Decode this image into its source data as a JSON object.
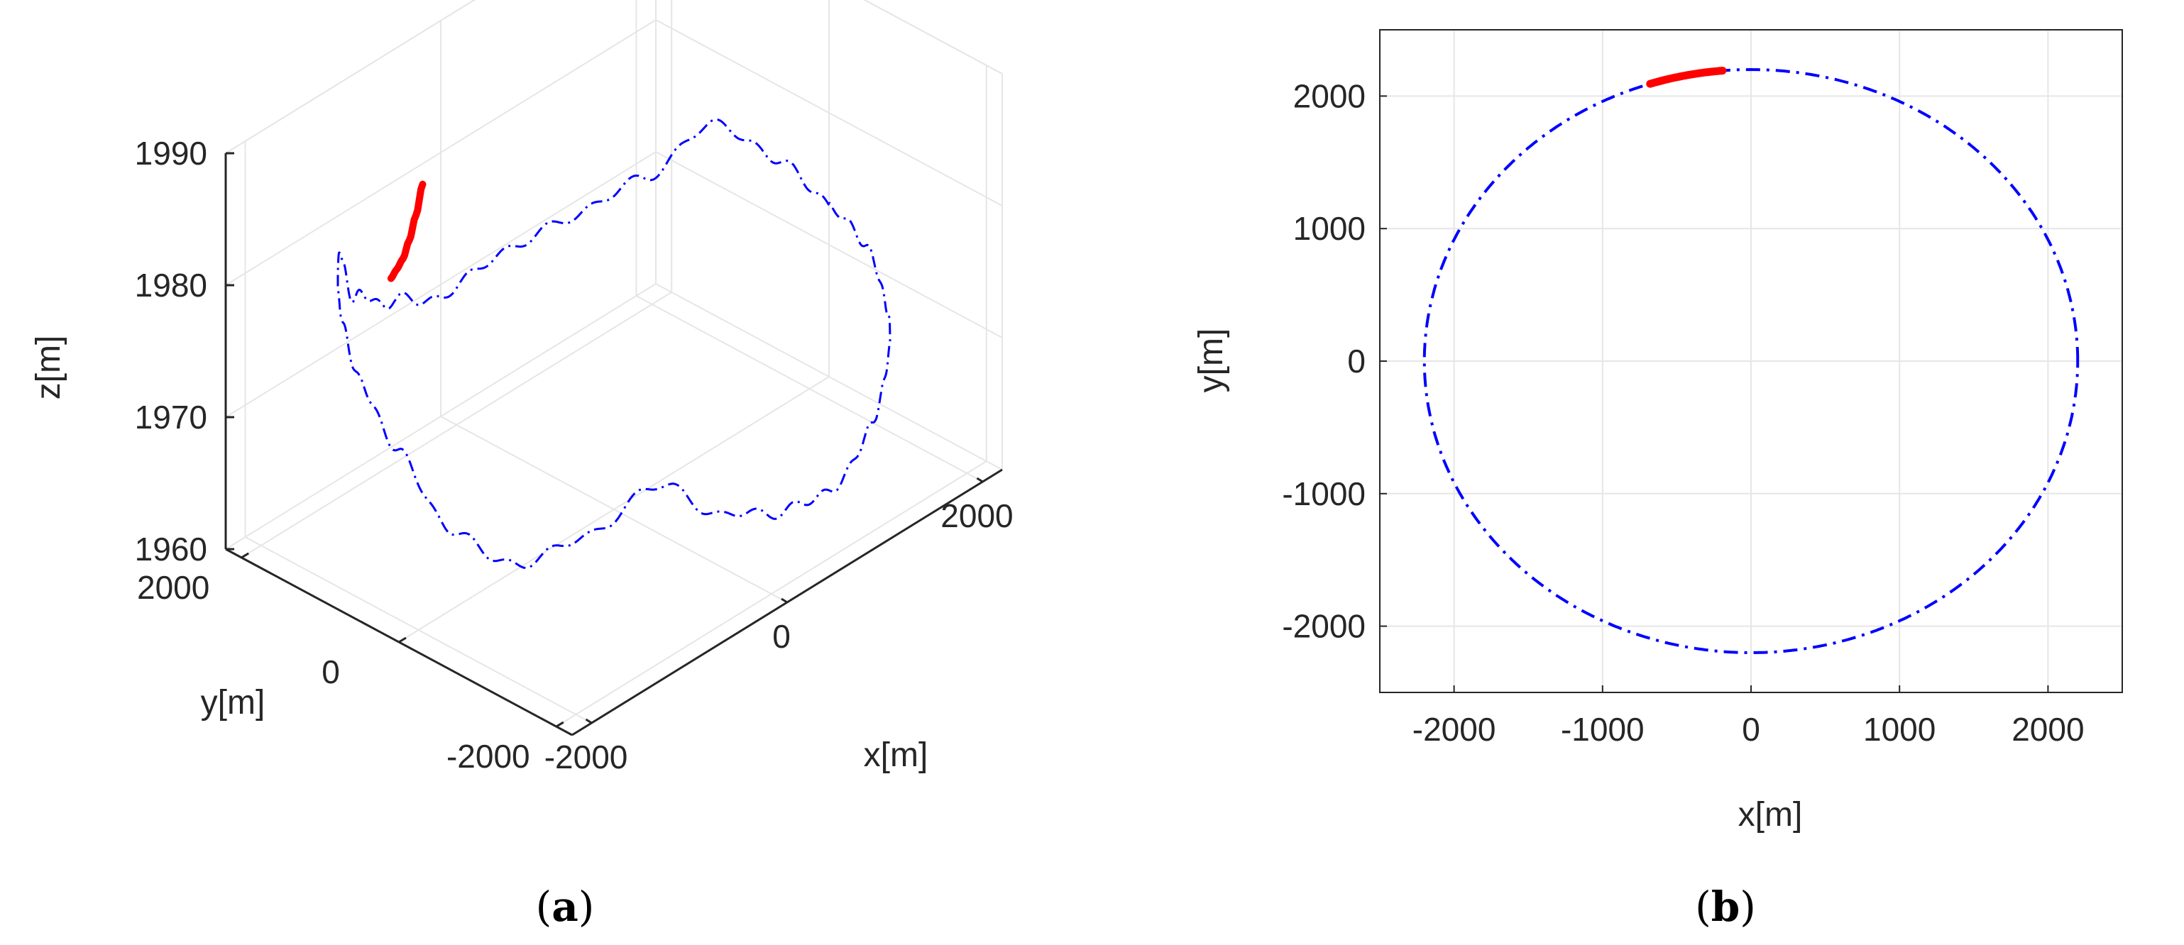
{
  "figure": {
    "caption_a": "(a)",
    "caption_a_letter": "a",
    "caption_b": "(b)",
    "caption_b_letter": "b"
  },
  "colors": {
    "trajectory": "#0000ff",
    "highlight": "#ff0000",
    "axis": "#262626",
    "grid": "#e6e6e6"
  },
  "chart_data": [
    {
      "id": "a",
      "type": "line",
      "projection": "3d",
      "xlabel": "x[m]",
      "ylabel": "y[m]",
      "zlabel": "z[m]",
      "xlim": [
        -2200,
        2200
      ],
      "ylim": [
        -2200,
        2200
      ],
      "zlim": [
        1960,
        1990
      ],
      "xticks": [
        -2000,
        0,
        2000
      ],
      "xtick_labels": [
        "-2000",
        "0",
        "2000"
      ],
      "yticks": [
        -2000,
        0,
        2000
      ],
      "ytick_labels": [
        "-2000",
        "0",
        "2000"
      ],
      "zticks": [
        1960,
        1970,
        1980,
        1990
      ],
      "ztick_labels": [
        "1960",
        "1970",
        "1980",
        "1990"
      ],
      "grid": true,
      "series": [
        {
          "name": "trajectory",
          "style": "dash-dot",
          "color": "#0000ff",
          "radius": 2200,
          "angle_deg": [
            0,
            15,
            30,
            45,
            60,
            75,
            90,
            105,
            120,
            135,
            150,
            165,
            180,
            195,
            210,
            225,
            240,
            255,
            270,
            285,
            300,
            315,
            330,
            345,
            360
          ],
          "z": [
            1973,
            1975,
            1977,
            1973,
            1971,
            1970,
            1969,
            1971.5,
            1975,
            1981.5,
            1980,
            1977.5,
            1974.5,
            1970,
            1968,
            1970,
            1973,
            1969,
            1967,
            1966,
            1967.5,
            1969.5,
            1970,
            1972,
            1973
          ]
        },
        {
          "name": "highlighted segment",
          "style": "solid",
          "color": "#ff0000",
          "radius": 2200,
          "angle_deg": [
            95,
            97,
            99,
            101,
            103,
            105
          ],
          "z": [
            1978.5,
            1976.5,
            1975,
            1974,
            1973.6,
            1973.3
          ]
        }
      ]
    },
    {
      "id": "b",
      "type": "line",
      "xlabel": "x[m]",
      "ylabel": "y[m]",
      "xlim": [
        -2500,
        2500
      ],
      "ylim": [
        -2500,
        2500
      ],
      "xticks": [
        -2000,
        -1000,
        0,
        1000,
        2000
      ],
      "xtick_labels": [
        "-2000",
        "-1000",
        "0",
        "1000",
        "2000"
      ],
      "yticks": [
        -2000,
        -1000,
        0,
        1000,
        2000
      ],
      "ytick_labels": [
        "-2000",
        "-1000",
        "0",
        "1000",
        "2000"
      ],
      "grid": true,
      "series": [
        {
          "name": "trajectory",
          "style": "dash-dot",
          "color": "#0000ff",
          "shape": "circle",
          "center": [
            0,
            0
          ],
          "radius": 2200,
          "angle_range_deg": [
            0,
            360
          ]
        },
        {
          "name": "highlighted segment",
          "style": "solid",
          "color": "#ff0000",
          "shape": "arc",
          "center": [
            0,
            0
          ],
          "radius": 2200,
          "angle_range_deg": [
            95,
            108
          ]
        }
      ]
    }
  ]
}
